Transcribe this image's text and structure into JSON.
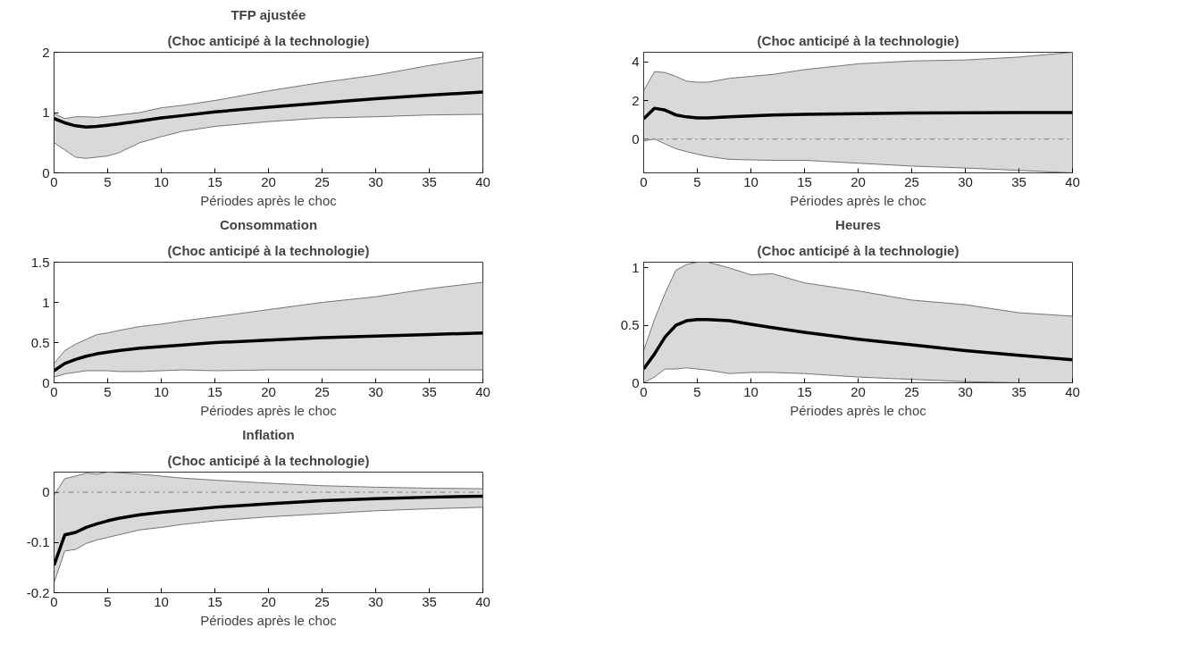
{
  "chart_data": [
    {
      "type": "line",
      "title": "TFP ajustée",
      "subtitle": "(Choc anticipé à la technologie)",
      "xlabel": "Périodes après le choc",
      "x": [
        0,
        1,
        2,
        3,
        4,
        5,
        6,
        8,
        10,
        12,
        15,
        20,
        25,
        30,
        35,
        40
      ],
      "xlim": [
        0,
        40
      ],
      "xticks": [
        0,
        5,
        10,
        15,
        20,
        25,
        30,
        35,
        40
      ],
      "ylim": [
        0,
        2
      ],
      "yticks": [
        0,
        1,
        2
      ],
      "grid": false,
      "series": [
        {
          "color": "#000000",
          "values": [
            0.9,
            0.83,
            0.78,
            0.76,
            0.77,
            0.79,
            0.81,
            0.86,
            0.91,
            0.95,
            1.01,
            1.09,
            1.16,
            1.23,
            1.29,
            1.34
          ],
          "lower": [
            0.5,
            0.38,
            0.26,
            0.24,
            0.26,
            0.28,
            0.33,
            0.5,
            0.6,
            0.69,
            0.77,
            0.85,
            0.91,
            0.93,
            0.96,
            0.97
          ],
          "upper": [
            0.98,
            0.9,
            0.93,
            0.93,
            0.92,
            0.94,
            0.96,
            1.0,
            1.08,
            1.12,
            1.2,
            1.36,
            1.5,
            1.62,
            1.78,
            1.92
          ]
        }
      ]
    },
    {
      "type": "line",
      "subtitle": "(Choc anticipé à la technologie)",
      "xlabel": "Périodes après le choc",
      "x": [
        0,
        1,
        2,
        3,
        4,
        5,
        6,
        8,
        10,
        12,
        15,
        20,
        25,
        30,
        35,
        40
      ],
      "xlim": [
        0,
        40
      ],
      "xticks": [
        0,
        5,
        10,
        15,
        20,
        25,
        30,
        35,
        40
      ],
      "ylim": [
        -1.75,
        4.5
      ],
      "yticks": [
        0,
        2,
        4
      ],
      "grid": false,
      "ref_lines": [
        {
          "axis": "y",
          "value": 0,
          "color": "#808080",
          "line_style": "dashdot"
        }
      ],
      "series": [
        {
          "color": "#000000",
          "values": [
            1.05,
            1.6,
            1.5,
            1.25,
            1.15,
            1.1,
            1.1,
            1.15,
            1.2,
            1.25,
            1.28,
            1.32,
            1.35,
            1.36,
            1.37,
            1.37
          ],
          "lower": [
            -0.1,
            0,
            -0.25,
            -0.5,
            -0.65,
            -0.78,
            -0.9,
            -1.05,
            -1.08,
            -1.1,
            -1.1,
            -1.25,
            -1.4,
            -1.5,
            -1.62,
            -1.75
          ],
          "upper": [
            2.5,
            3.5,
            3.45,
            3.25,
            3.0,
            2.95,
            2.95,
            3.15,
            3.25,
            3.35,
            3.6,
            3.9,
            4.05,
            4.1,
            4.25,
            4.5
          ]
        }
      ]
    },
    {
      "type": "line",
      "title": "Consommation",
      "subtitle": "(Choc anticipé à la technologie)",
      "xlabel": "Périodes après le choc",
      "x": [
        0,
        1,
        2,
        3,
        4,
        5,
        6,
        8,
        10,
        12,
        15,
        20,
        25,
        30,
        35,
        40
      ],
      "xlim": [
        0,
        40
      ],
      "xticks": [
        0,
        5,
        10,
        15,
        20,
        25,
        30,
        35,
        40
      ],
      "ylim": [
        0,
        1.5
      ],
      "yticks": [
        0,
        0.5,
        1,
        1.5
      ],
      "grid": false,
      "series": [
        {
          "color": "#000000",
          "values": [
            0.15,
            0.24,
            0.29,
            0.33,
            0.36,
            0.38,
            0.4,
            0.43,
            0.45,
            0.47,
            0.5,
            0.53,
            0.56,
            0.58,
            0.6,
            0.62
          ],
          "lower": [
            0.07,
            0.11,
            0.13,
            0.15,
            0.15,
            0.15,
            0.14,
            0.14,
            0.15,
            0.16,
            0.15,
            0.16,
            0.16,
            0.16,
            0.16,
            0.16
          ],
          "upper": [
            0.24,
            0.4,
            0.48,
            0.54,
            0.6,
            0.62,
            0.65,
            0.7,
            0.73,
            0.77,
            0.82,
            0.91,
            1.0,
            1.07,
            1.17,
            1.25
          ]
        }
      ]
    },
    {
      "type": "line",
      "title": "Heures",
      "subtitle": "(Choc anticipé à la technologie)",
      "xlabel": "Périodes après le choc",
      "x": [
        0,
        1,
        2,
        3,
        4,
        5,
        6,
        8,
        10,
        12,
        15,
        20,
        25,
        30,
        35,
        40
      ],
      "xlim": [
        0,
        40
      ],
      "xticks": [
        0,
        5,
        10,
        15,
        20,
        25,
        30,
        35,
        40
      ],
      "ylim": [
        0,
        1.05
      ],
      "yticks": [
        0,
        0.5,
        1
      ],
      "grid": false,
      "series": [
        {
          "color": "#000000",
          "values": [
            0.12,
            0.25,
            0.4,
            0.5,
            0.54,
            0.55,
            0.55,
            0.54,
            0.51,
            0.48,
            0.44,
            0.38,
            0.33,
            0.28,
            0.24,
            0.2
          ],
          "lower": [
            0,
            0.05,
            0.12,
            0.12,
            0.13,
            0.12,
            0.11,
            0.08,
            0.09,
            0.09,
            0.08,
            0.05,
            0.03,
            0.01,
            0,
            0
          ],
          "upper": [
            0.28,
            0.55,
            0.78,
            0.98,
            1.03,
            1.05,
            1.05,
            1.0,
            0.94,
            0.95,
            0.87,
            0.8,
            0.72,
            0.68,
            0.61,
            0.58
          ]
        }
      ]
    },
    {
      "type": "line",
      "title": "Inflation",
      "subtitle": "(Choc anticipé à la technologie)",
      "xlabel": "Périodes après le choc",
      "x": [
        0,
        1,
        2,
        3,
        4,
        5,
        6,
        8,
        10,
        12,
        15,
        20,
        25,
        30,
        35,
        40
      ],
      "xlim": [
        0,
        40
      ],
      "xticks": [
        0,
        5,
        10,
        15,
        20,
        25,
        30,
        35,
        40
      ],
      "ylim": [
        -0.2,
        0.04
      ],
      "yticks": [
        -0.2,
        -0.1,
        0
      ],
      "grid": false,
      "ref_lines": [
        {
          "axis": "y",
          "value": 0,
          "color": "#808080",
          "line_style": "dashdot"
        }
      ],
      "series": [
        {
          "color": "#000000",
          "values": [
            -0.145,
            -0.085,
            -0.08,
            -0.07,
            -0.063,
            -0.057,
            -0.052,
            -0.045,
            -0.04,
            -0.036,
            -0.03,
            -0.023,
            -0.017,
            -0.013,
            -0.01,
            -0.008
          ],
          "lower": [
            -0.18,
            -0.117,
            -0.114,
            -0.102,
            -0.095,
            -0.09,
            -0.085,
            -0.075,
            -0.07,
            -0.064,
            -0.057,
            -0.049,
            -0.043,
            -0.037,
            -0.033,
            -0.03
          ],
          "upper": [
            -0.005,
            0.027,
            0.032,
            0.038,
            0.036,
            0.04,
            0.039,
            0.036,
            0.032,
            0.028,
            0.024,
            0.018,
            0.013,
            0.01,
            0.008,
            0.007
          ]
        }
      ]
    }
  ]
}
